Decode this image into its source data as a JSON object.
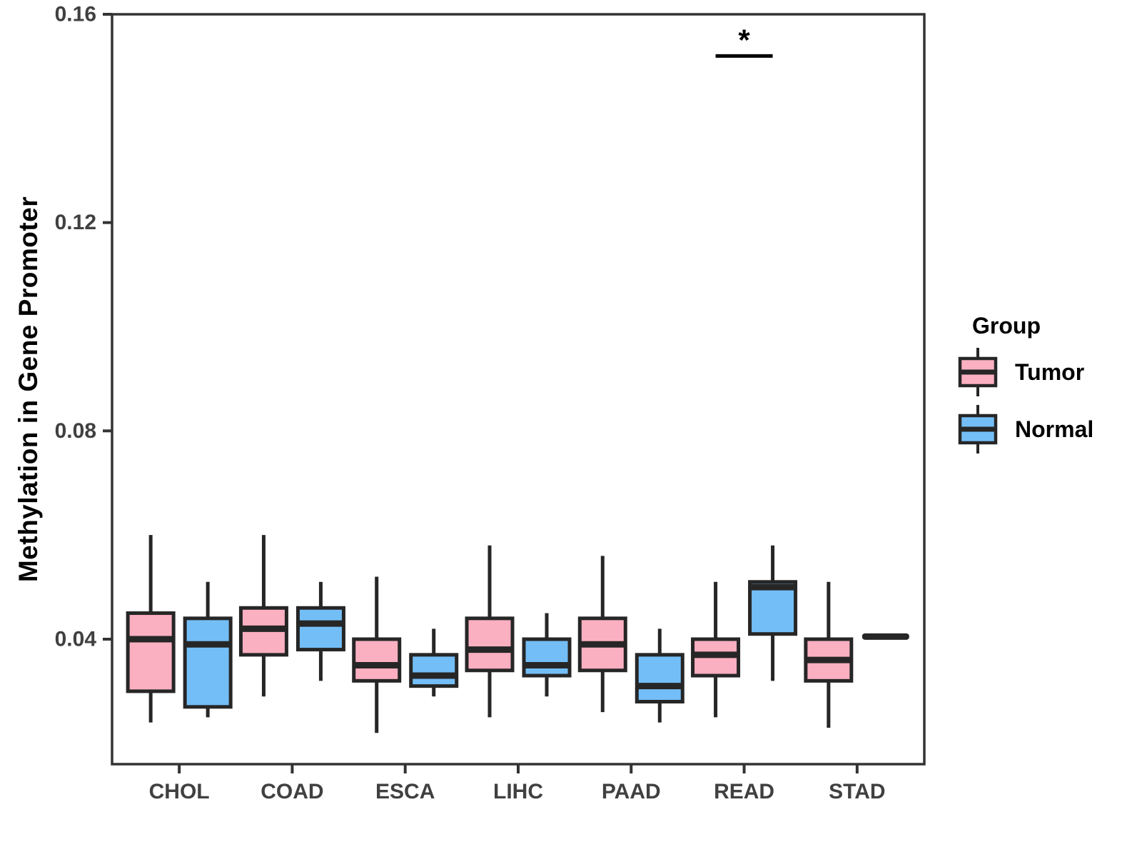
{
  "chart_data": {
    "type": "boxplot",
    "title": "",
    "xlabel": "",
    "ylabel": "Methylation in Gene Promoter",
    "grid": false,
    "legend_position": "right",
    "categories": [
      "CHOL",
      "COAD",
      "ESCA",
      "LIHC",
      "PAAD",
      "READ",
      "STAD"
    ],
    "y_axis": {
      "range": [
        0.016,
        0.16
      ],
      "ticks": [
        0.04,
        0.08,
        0.12,
        0.16
      ],
      "tick_labels": [
        "0.04",
        "0.08",
        "0.12",
        "0.16"
      ]
    },
    "colors": {
      "tumor": "#FBB0C1",
      "normal": "#74BEF7",
      "box_outline": "#262626",
      "axis": "#333333",
      "tick_text": "#404040",
      "annotation": "#000000"
    },
    "legend": {
      "title": "Group",
      "items": [
        {
          "label": "Tumor",
          "color": "#FBB0C1"
        },
        {
          "label": "Normal",
          "color": "#74BEF7"
        }
      ]
    },
    "series": [
      {
        "name": "Tumor",
        "color": "#FBB0C1",
        "boxes": [
          {
            "category": "CHOL",
            "min": 0.024,
            "q1": 0.03,
            "median": 0.04,
            "q3": 0.045,
            "max": 0.06
          },
          {
            "category": "COAD",
            "min": 0.029,
            "q1": 0.037,
            "median": 0.042,
            "q3": 0.046,
            "max": 0.06
          },
          {
            "category": "ESCA",
            "min": 0.022,
            "q1": 0.032,
            "median": 0.035,
            "q3": 0.04,
            "max": 0.052
          },
          {
            "category": "LIHC",
            "min": 0.025,
            "q1": 0.034,
            "median": 0.038,
            "q3": 0.044,
            "max": 0.058
          },
          {
            "category": "PAAD",
            "min": 0.026,
            "q1": 0.034,
            "median": 0.039,
            "q3": 0.044,
            "max": 0.056
          },
          {
            "category": "READ",
            "min": 0.025,
            "q1": 0.033,
            "median": 0.037,
            "q3": 0.04,
            "max": 0.051
          },
          {
            "category": "STAD",
            "min": 0.023,
            "q1": 0.032,
            "median": 0.036,
            "q3": 0.04,
            "max": 0.051
          }
        ]
      },
      {
        "name": "Normal",
        "color": "#74BEF7",
        "boxes": [
          {
            "category": "CHOL",
            "min": 0.025,
            "q1": 0.027,
            "median": 0.039,
            "q3": 0.044,
            "max": 0.051
          },
          {
            "category": "COAD",
            "min": 0.032,
            "q1": 0.038,
            "median": 0.043,
            "q3": 0.046,
            "max": 0.051
          },
          {
            "category": "ESCA",
            "min": 0.029,
            "q1": 0.031,
            "median": 0.033,
            "q3": 0.037,
            "max": 0.042
          },
          {
            "category": "LIHC",
            "min": 0.029,
            "q1": 0.033,
            "median": 0.035,
            "q3": 0.04,
            "max": 0.045
          },
          {
            "category": "PAAD",
            "min": 0.024,
            "q1": 0.028,
            "median": 0.031,
            "q3": 0.037,
            "max": 0.042
          },
          {
            "category": "READ",
            "min": 0.032,
            "q1": 0.041,
            "median": 0.05,
            "q3": 0.051,
            "max": 0.058
          },
          {
            "category": "STAD",
            "single_value": 0.0405
          }
        ]
      }
    ],
    "annotations": [
      {
        "type": "significance",
        "category": "READ",
        "label": "*",
        "y_value": 0.152
      }
    ]
  }
}
